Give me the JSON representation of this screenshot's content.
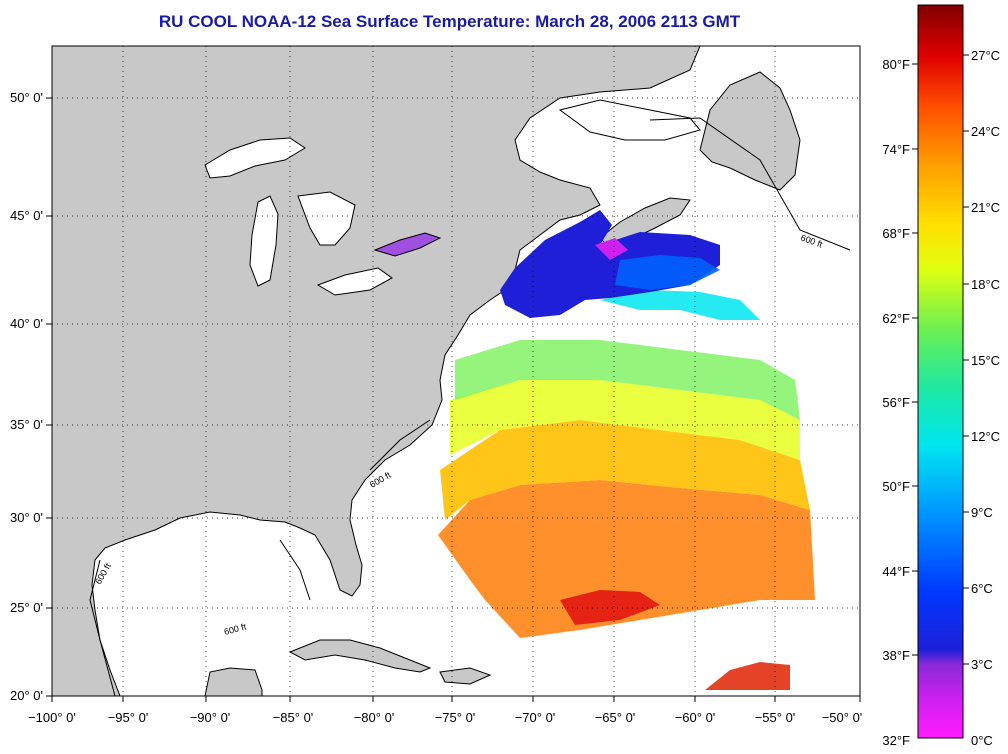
{
  "title": "RU COOL  NOAA-12  Sea Surface Temperature:  March 28, 2006 2113 GMT",
  "colors": {
    "land": "#c8c8c8",
    "ocean_nodata": "#ffffff",
    "title": "#1a1aa8"
  },
  "axes": {
    "lon_ticks": [
      "−100° 0'",
      "−95° 0'",
      "−90° 0'",
      "−85° 0'",
      "−80° 0'",
      "−75° 0'",
      "−70° 0'",
      "−65° 0'",
      "−60° 0'",
      "−55° 0'",
      "−50° 0'"
    ],
    "lat_ticks": [
      "20° 0'",
      "25° 0'",
      "30° 0'",
      "35° 0'",
      "40° 0'",
      "45° 0'",
      "50° 0'"
    ],
    "lon_range": [
      -100,
      -50
    ],
    "lat_range": [
      20,
      52
    ],
    "grid": "dotted"
  },
  "isobath_label": "600 ft",
  "colorbar": {
    "fahrenheit": [
      "80°F",
      "74°F",
      "68°F",
      "62°F",
      "56°F",
      "50°F",
      "44°F",
      "38°F",
      "32°F"
    ],
    "celsius": [
      "27°C",
      "24°C",
      "21°C",
      "18°C",
      "15°C",
      "12°C",
      "9°C",
      "6°C",
      "3°C",
      "0°C"
    ],
    "range_c": [
      0,
      28
    ],
    "colors": [
      "#ff1cff",
      "#9b2fe0",
      "#1f1fd8",
      "#0050ff",
      "#00a0ff",
      "#00e6ee",
      "#20e8a0",
      "#a0f040",
      "#ffff10",
      "#ffc000",
      "#ff8a00",
      "#ff3a00",
      "#e00000",
      "#900000"
    ]
  }
}
